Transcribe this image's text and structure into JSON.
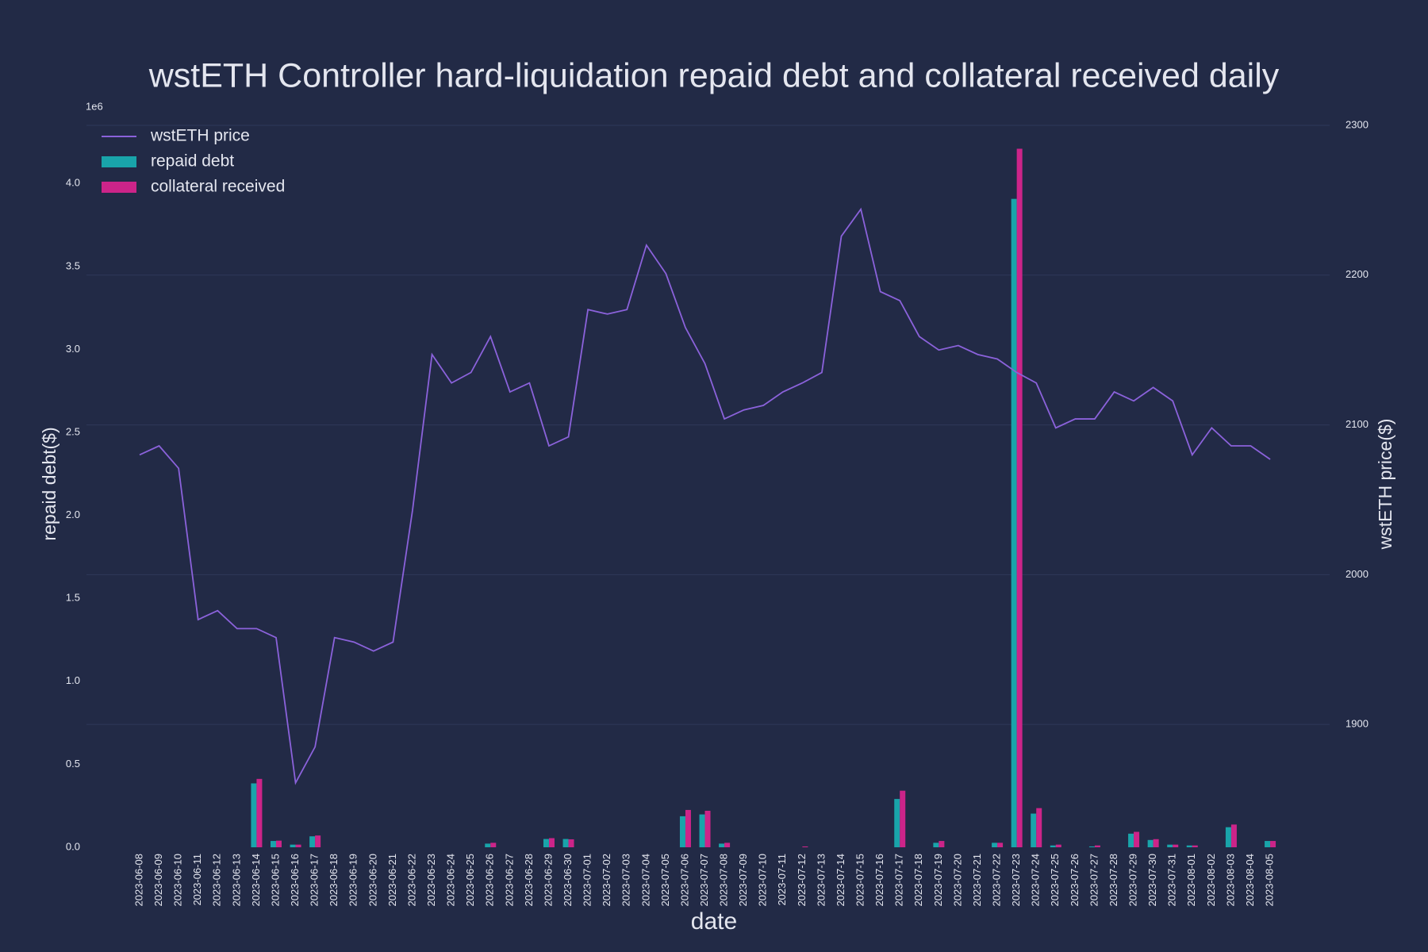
{
  "chart_data": {
    "type": "bar",
    "title": "wstETH Controller hard-liquidation repaid debt and collateral received daily",
    "xlabel": "date",
    "ylabel": "repaid debt($)",
    "y2label": "wstETH price($)",
    "yoffset_label": "1e6",
    "legend": "upper left",
    "grid": true,
    "categories": [
      "2023-06-08",
      "2023-06-09",
      "2023-06-10",
      "2023-06-11",
      "2023-06-12",
      "2023-06-13",
      "2023-06-14",
      "2023-06-15",
      "2023-06-16",
      "2023-06-17",
      "2023-06-18",
      "2023-06-19",
      "2023-06-20",
      "2023-06-21",
      "2023-06-22",
      "2023-06-23",
      "2023-06-24",
      "2023-06-25",
      "2023-06-26",
      "2023-06-27",
      "2023-06-28",
      "2023-06-29",
      "2023-06-30",
      "2023-07-01",
      "2023-07-02",
      "2023-07-03",
      "2023-07-04",
      "2023-07-05",
      "2023-07-06",
      "2023-07-07",
      "2023-07-08",
      "2023-07-09",
      "2023-07-10",
      "2023-07-11",
      "2023-07-12",
      "2023-07-13",
      "2023-07-14",
      "2023-07-15",
      "2023-07-16",
      "2023-07-17",
      "2023-07-18",
      "2023-07-19",
      "2023-07-20",
      "2023-07-21",
      "2023-07-22",
      "2023-07-23",
      "2023-07-24",
      "2023-07-25",
      "2023-07-26",
      "2023-07-27",
      "2023-07-28",
      "2023-07-29",
      "2023-07-30",
      "2023-07-31",
      "2023-08-01",
      "2023-08-02",
      "2023-08-03",
      "2023-08-04",
      "2023-08-05"
    ],
    "series": [
      {
        "name": "wstETH price",
        "type": "line",
        "axis": "y2",
        "color": "#8b62db",
        "values": [
          2080,
          2086,
          2071,
          1970,
          1976,
          1964,
          1964,
          1958,
          1861,
          1885,
          1958,
          1955,
          1949,
          1955,
          2043,
          2147,
          2128,
          2135,
          2159,
          2122,
          2128,
          2086,
          2092,
          2177,
          2174,
          2177,
          2220,
          2201,
          2165,
          2141,
          2104,
          2110,
          2113,
          2122,
          2128,
          2135,
          2226,
          2244,
          2189,
          2183,
          2159,
          2150,
          2153,
          2147,
          2144,
          2135,
          2128,
          2098,
          2104,
          2104,
          2122,
          2116,
          2125,
          2116,
          2080,
          2098,
          2086,
          2086,
          2077
        ]
      },
      {
        "name": "repaid debt",
        "type": "bar",
        "color": "#19a4aa",
        "values": [
          0,
          0,
          0,
          0,
          0,
          0,
          385000,
          38000,
          16000,
          66000,
          0,
          0,
          0,
          0,
          0,
          0,
          0,
          0,
          22000,
          0,
          0,
          50000,
          50000,
          0,
          0,
          0,
          0,
          0,
          187000,
          198000,
          22000,
          0,
          0,
          0,
          0,
          0,
          0,
          0,
          0,
          291000,
          0,
          27000,
          0,
          0,
          27000,
          3907000,
          203000,
          11000,
          0,
          5000,
          0,
          82000,
          44000,
          16000,
          11000,
          0,
          121000,
          0,
          38000
        ]
      },
      {
        "name": "collateral received",
        "type": "bar",
        "color": "#cc2489",
        "values": [
          0,
          0,
          0,
          0,
          0,
          0,
          412000,
          40000,
          16000,
          71000,
          0,
          0,
          0,
          0,
          0,
          0,
          0,
          0,
          27000,
          0,
          0,
          55000,
          48000,
          0,
          0,
          0,
          0,
          0,
          225000,
          220000,
          27000,
          0,
          0,
          0,
          5000,
          0,
          0,
          0,
          0,
          341000,
          0,
          38000,
          0,
          0,
          27000,
          4209000,
          236000,
          16000,
          0,
          11000,
          0,
          93000,
          49000,
          16000,
          11000,
          0,
          137000,
          0,
          38000
        ]
      }
    ],
    "ylim": [
      0,
      4350000
    ],
    "yticks": [
      {
        "value": 0,
        "label": "0.0"
      },
      {
        "value": 500000,
        "label": "0.5"
      },
      {
        "value": 1000000,
        "label": "1.0"
      },
      {
        "value": 1500000,
        "label": "1.5"
      },
      {
        "value": 2000000,
        "label": "2.0"
      },
      {
        "value": 2500000,
        "label": "2.5"
      },
      {
        "value": 3000000,
        "label": "3.0"
      },
      {
        "value": 3500000,
        "label": "3.5"
      },
      {
        "value": 4000000,
        "label": "4.0"
      }
    ],
    "y2lim": [
      1818,
      2300
    ],
    "y2ticks": [
      1900,
      2000,
      2100,
      2200,
      2300
    ]
  }
}
